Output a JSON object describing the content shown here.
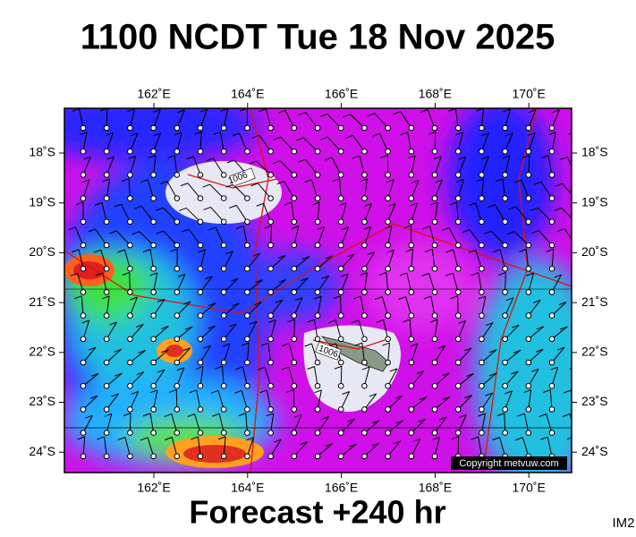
{
  "header": {
    "title": "1100 NCDT Tue 18 Nov 2025"
  },
  "map": {
    "lon_labels": [
      "162˚E",
      "164˚E",
      "166˚E",
      "168˚E",
      "170˚E"
    ],
    "lat_labels": [
      "18˚S",
      "19˚S",
      "20˚S",
      "21˚S",
      "22˚S",
      "23˚S",
      "24˚S"
    ],
    "isobar_labels": [
      "1006",
      "1006"
    ],
    "copyright": "Copyright metvuw.com"
  },
  "footer": {
    "forecast": "Forecast +240 hr",
    "code": "IM2"
  }
}
